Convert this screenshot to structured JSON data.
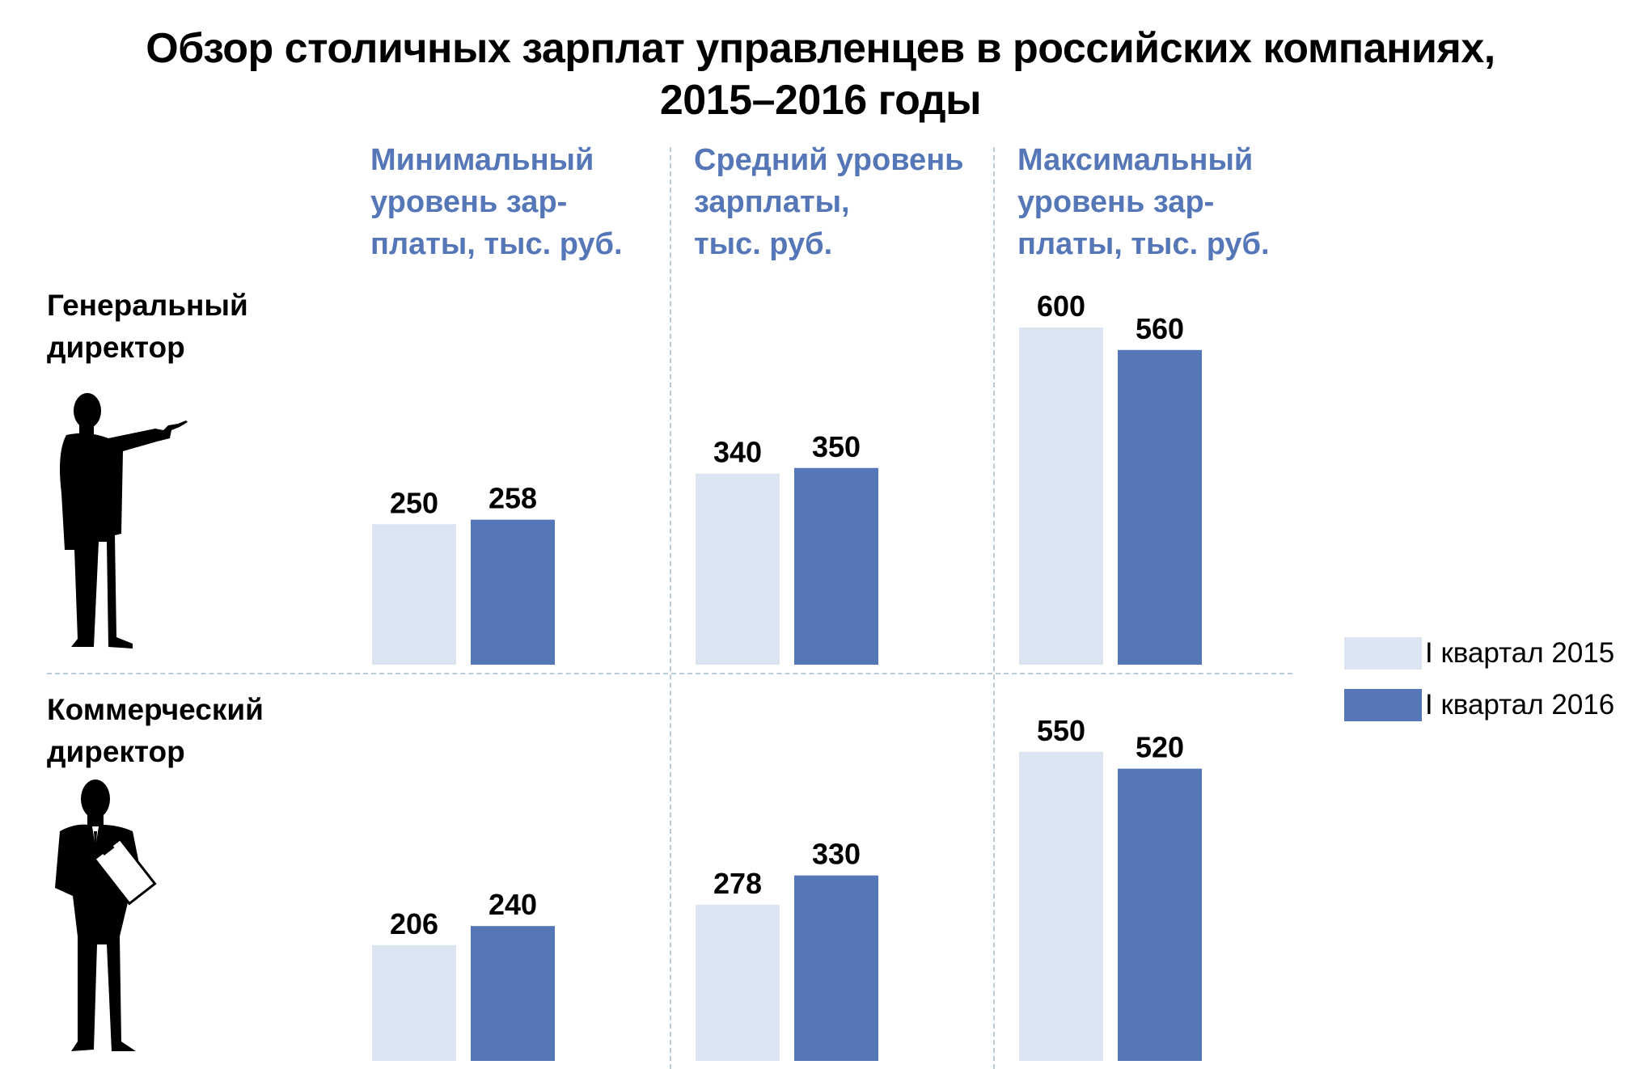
{
  "chart_data": {
    "type": "bar",
    "title": [
      "Обзор столичных зарплат управленцев в российских компаниях,",
      "2015–2016 годы"
    ],
    "column_headers": [
      "Минимальный\nуровень зар-\nплаты, тыс. руб.",
      "Средний уровень\nзарплаты,\nтыс. руб.",
      "Максимальный\nуровень зар-\nплаты, тыс. руб."
    ],
    "row_labels": [
      "Генеральный\nдиректор",
      "Коммерческий\nдиректор"
    ],
    "series": [
      {
        "name": "I квартал 2015",
        "color": "#dce6f2"
      },
      {
        "name": "I квартал 2016",
        "color": "#5577b8"
      }
    ],
    "rows": [
      {
        "label": "Генеральный директор",
        "groups": [
          [
            250,
            258
          ],
          [
            340,
            350
          ],
          [
            600,
            560
          ]
        ]
      },
      {
        "label": "Коммерческий директор",
        "groups": [
          [
            206,
            240
          ],
          [
            278,
            330
          ],
          [
            550,
            520
          ]
        ]
      }
    ],
    "header_color": "#5577b8",
    "ylim": [
      0,
      700
    ]
  }
}
